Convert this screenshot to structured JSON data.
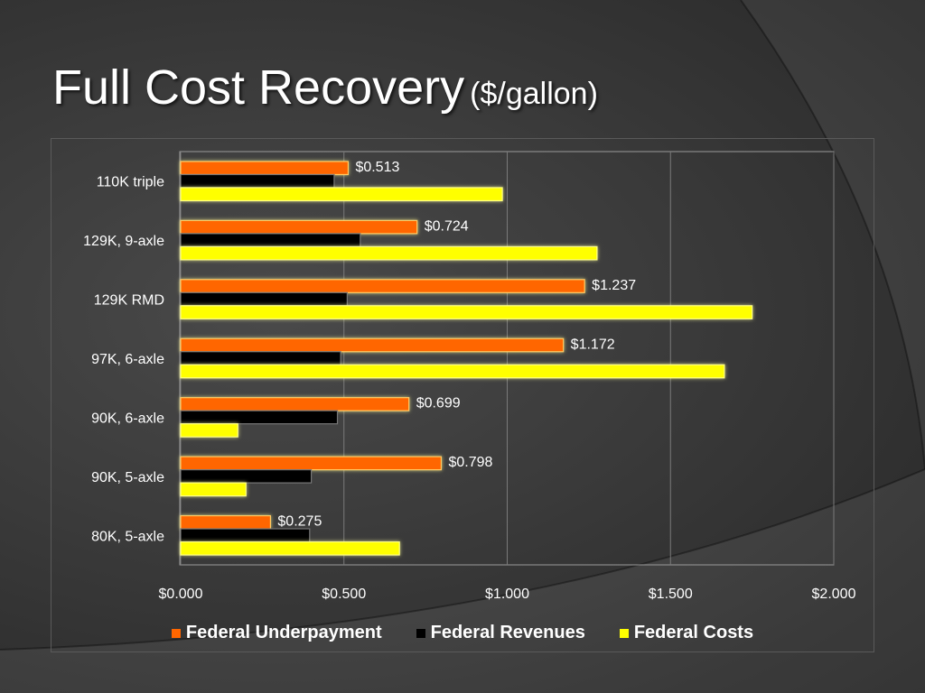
{
  "slide": {
    "title": "Full Cost Recovery",
    "title_suffix": "($/gallon)"
  },
  "chart_data": {
    "type": "bar",
    "orientation": "horizontal",
    "categories": [
      "80K, 5-axle",
      "90K, 5-axle",
      "90K, 6-axle",
      "97K, 6-axle",
      "129K RMD",
      "129K, 9-axle",
      "110K triple"
    ],
    "series": [
      {
        "name": "Federal Underpayment",
        "color": "#ff6600",
        "values": [
          0.275,
          0.798,
          0.699,
          1.172,
          1.237,
          0.724,
          0.513
        ],
        "data_labels": [
          "$0.275",
          "$0.798",
          "$0.699",
          "$1.172",
          "$1.237",
          "$0.724",
          "$0.513"
        ]
      },
      {
        "name": "Federal Revenues",
        "color": "#000000",
        "values": [
          0.395,
          0.4,
          0.48,
          0.49,
          0.51,
          0.55,
          0.47
        ]
      },
      {
        "name": "Federal Costs",
        "color": "#ffff00",
        "values": [
          0.67,
          0.2,
          0.175,
          1.665,
          1.75,
          1.275,
          0.985
        ]
      }
    ],
    "xlim": [
      0,
      2
    ],
    "x_ticks": [
      0,
      0.5,
      1.0,
      1.5,
      2.0
    ],
    "x_tick_labels": [
      "$0.000",
      "$0.500",
      "$1.000",
      "$1.500",
      "$2.000"
    ],
    "gridlines": "vertical",
    "legend_position": "bottom"
  }
}
